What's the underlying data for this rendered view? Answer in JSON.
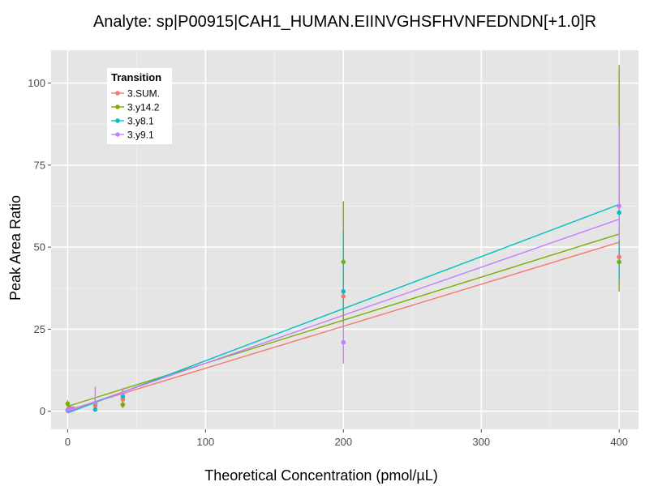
{
  "chart_data": {
    "type": "scatter",
    "title": "Analyte: sp|P00915|CAH1_HUMAN.EIINVGHSFHVNFEDNDN[+1.0]R",
    "xlabel": "Theoretical Concentration (pmol/µL)",
    "ylabel": "Peak Area Ratio",
    "xlim": [
      -12,
      414
    ],
    "ylim": [
      -5.5,
      110
    ],
    "x_ticks": [
      0,
      100,
      200,
      300,
      400
    ],
    "y_ticks": [
      0,
      25,
      50,
      75,
      100
    ],
    "x_tick_labels": [
      "0",
      "100",
      "200",
      "300",
      "400"
    ],
    "y_tick_labels": [
      "0",
      "25",
      "50",
      "75",
      "100"
    ],
    "grid": true,
    "legend": {
      "title": "Transition",
      "position": "top-left"
    },
    "series": [
      {
        "name": "3.SUM.",
        "color": "#F8766D",
        "points": [
          {
            "x": 0,
            "y": 0.3,
            "lo": 0.1,
            "hi": 0.6
          },
          {
            "x": 1,
            "y": 0.5,
            "lo": 0.2,
            "hi": 0.8
          },
          {
            "x": 2,
            "y": 0.6,
            "lo": 0.3,
            "hi": 0.9
          },
          {
            "x": 4,
            "y": 0.7,
            "lo": 0.4,
            "hi": 1.0
          },
          {
            "x": 20,
            "y": 1.6,
            "lo": 0.6,
            "hi": 2.6
          },
          {
            "x": 40,
            "y": 3.6,
            "lo": 2.3,
            "hi": 5.0
          },
          {
            "x": 200,
            "y": 35.0,
            "lo": 28.0,
            "hi": 42.0
          },
          {
            "x": 400,
            "y": 47.0,
            "lo": 40.0,
            "hi": 54.0
          }
        ],
        "fit": [
          [
            0,
            0.3
          ],
          [
            400,
            51.5
          ]
        ]
      },
      {
        "name": "3.y14.2",
        "color": "#7CAE00",
        "points": [
          {
            "x": 0,
            "y": 2.3,
            "lo": 1.0,
            "hi": 3.4
          },
          {
            "x": 1,
            "y": 1.0,
            "lo": 0.5,
            "hi": 1.5
          },
          {
            "x": 2,
            "y": 0.9,
            "lo": 0.4,
            "hi": 1.4
          },
          {
            "x": 4,
            "y": 0.8,
            "lo": 0.4,
            "hi": 1.2
          },
          {
            "x": 20,
            "y": 2.3,
            "lo": 1.5,
            "hi": 3.5
          },
          {
            "x": 40,
            "y": 2.0,
            "lo": 1.0,
            "hi": 6.5
          },
          {
            "x": 200,
            "y": 45.5,
            "lo": 27.0,
            "hi": 64.0
          },
          {
            "x": 400,
            "y": 45.5,
            "lo": 36.5,
            "hi": 105.5
          }
        ],
        "fit": [
          [
            0,
            1.5
          ],
          [
            400,
            54.0
          ]
        ]
      },
      {
        "name": "3.y8.1",
        "color": "#00BFC4",
        "points": [
          {
            "x": 0,
            "y": 0.2,
            "lo": 0.1,
            "hi": 0.4
          },
          {
            "x": 1,
            "y": 0.4,
            "lo": 0.2,
            "hi": 0.6
          },
          {
            "x": 2,
            "y": 0.5,
            "lo": 0.3,
            "hi": 0.7
          },
          {
            "x": 4,
            "y": 0.6,
            "lo": 0.4,
            "hi": 0.8
          },
          {
            "x": 20,
            "y": 0.5,
            "lo": 0.2,
            "hi": 1.0
          },
          {
            "x": 40,
            "y": 4.5,
            "lo": 3.0,
            "hi": 6.0
          },
          {
            "x": 200,
            "y": 36.5,
            "lo": 30.0,
            "hi": 55.0
          },
          {
            "x": 400,
            "y": 60.5,
            "lo": 40.0,
            "hi": 66.0
          }
        ],
        "fit": [
          [
            0,
            -0.5
          ],
          [
            400,
            63.0
          ]
        ]
      },
      {
        "name": "3.y9.1",
        "color": "#C77CFF",
        "points": [
          {
            "x": 0,
            "y": 0.4,
            "lo": 0.1,
            "hi": 0.7
          },
          {
            "x": 1,
            "y": 0.6,
            "lo": 0.3,
            "hi": 0.9
          },
          {
            "x": 2,
            "y": 0.7,
            "lo": 0.4,
            "hi": 1.0
          },
          {
            "x": 4,
            "y": 0.8,
            "lo": 0.5,
            "hi": 1.1
          },
          {
            "x": 20,
            "y": 2.5,
            "lo": 0.8,
            "hi": 7.5
          },
          {
            "x": 40,
            "y": 5.5,
            "lo": 4.0,
            "hi": 7.0
          },
          {
            "x": 200,
            "y": 21.0,
            "lo": 14.5,
            "hi": 27.5
          },
          {
            "x": 400,
            "y": 62.5,
            "lo": 52.0,
            "hi": 87.0
          }
        ],
        "fit": [
          [
            0,
            0.0
          ],
          [
            400,
            58.5
          ]
        ]
      }
    ]
  }
}
